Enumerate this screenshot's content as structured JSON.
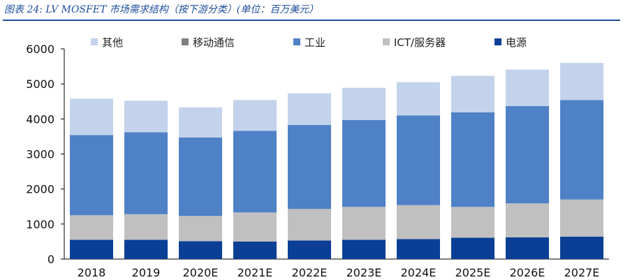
{
  "caption": "图表 24:  LV MOSFET 市场需求结构（按下游分类）(单位：百万美元）",
  "chart_data": {
    "type": "bar",
    "stacked": true,
    "categories": [
      "2018",
      "2019",
      "2020E",
      "2021E",
      "2022E",
      "2023E",
      "2024E",
      "2025E",
      "2026E",
      "2027E"
    ],
    "ylim": [
      0,
      6000
    ],
    "yticks": [
      0,
      1000,
      2000,
      3000,
      4000,
      5000,
      6000
    ],
    "legend_position": "top",
    "series": [
      {
        "name": "电源",
        "color": "#0b3f96",
        "values": [
          550,
          550,
          510,
          500,
          530,
          550,
          570,
          610,
          620,
          640
        ]
      },
      {
        "name": "ICT/服务器",
        "color": "#c0c0c0",
        "values": [
          700,
          730,
          720,
          830,
          900,
          940,
          970,
          880,
          970,
          1060
        ]
      },
      {
        "name": "移动通信",
        "color": "#7f7f7f",
        "values": [
          0,
          0,
          0,
          0,
          0,
          0,
          0,
          0,
          0,
          0
        ]
      },
      {
        "name": "工业",
        "color": "#4f81c7",
        "values": [
          2290,
          2340,
          2240,
          2330,
          2400,
          2480,
          2560,
          2700,
          2780,
          2840
        ]
      },
      {
        "name": "其他",
        "color": "#c3d3ec",
        "values": [
          1040,
          900,
          860,
          880,
          900,
          920,
          950,
          1040,
          1040,
          1060
        ]
      }
    ],
    "legend_order": [
      "其他",
      "移动通信",
      "工业",
      "ICT/服务器",
      "电源"
    ]
  }
}
